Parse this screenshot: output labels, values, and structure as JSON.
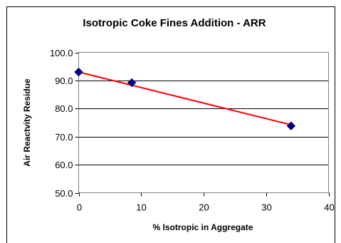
{
  "chart_data": {
    "type": "scatter",
    "title": "Isotropic Coke Fines Addition - ARR",
    "xlabel": "% Isotropic in Aggregate",
    "ylabel": "Air Reactvity Residue",
    "xlim": [
      0,
      40
    ],
    "ylim": [
      50,
      100
    ],
    "x_ticks": [
      "0",
      "10",
      "20",
      "30",
      "40"
    ],
    "y_ticks": [
      "50.0",
      "60.0",
      "70.0",
      "80.0",
      "90.0",
      "100.0"
    ],
    "grid": "horizontal",
    "legend": "none",
    "series": [
      {
        "points": [
          {
            "x": 0,
            "y": 93.0
          },
          {
            "x": 8.5,
            "y": 89.2
          },
          {
            "x": 34,
            "y": 73.8
          }
        ],
        "marker": "diamond",
        "marker_color": "#000080"
      }
    ],
    "trendline": {
      "type": "linear",
      "x": [
        0,
        34
      ],
      "y": [
        93.0,
        74.2
      ],
      "color": "#ff0000"
    }
  }
}
